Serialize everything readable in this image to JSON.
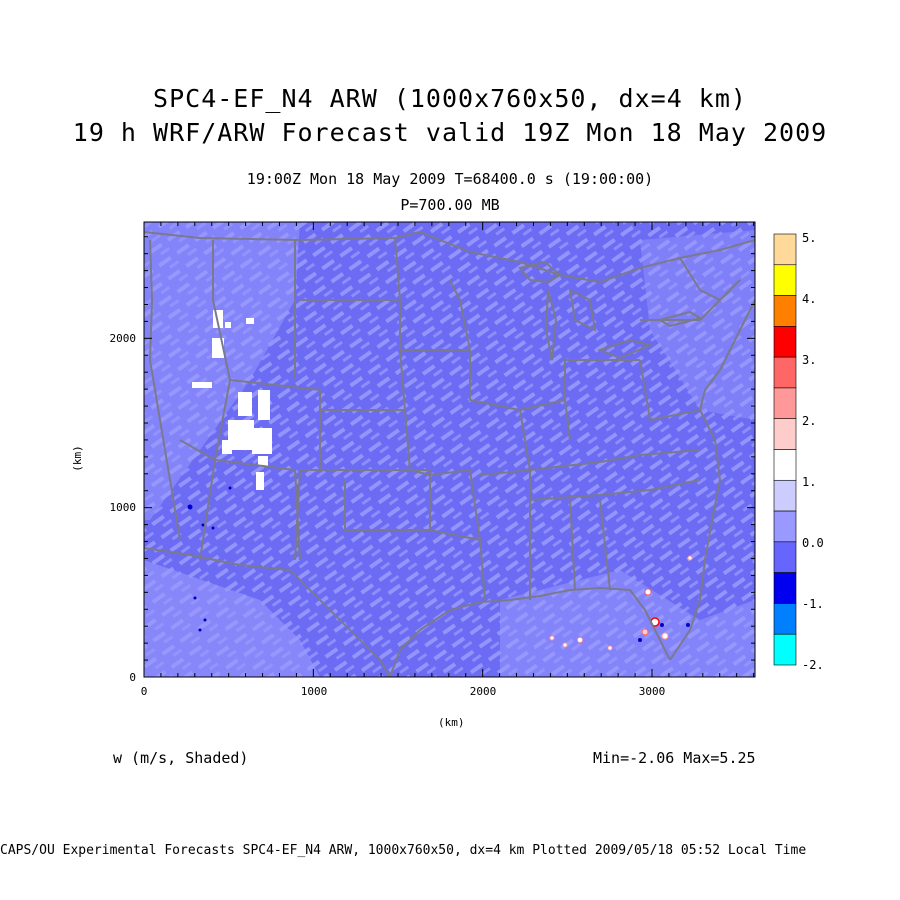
{
  "header": {
    "title_line1": "SPC4-EF_N4 ARW (1000x760x50, dx=4 km)",
    "title_line2": "19 h WRF/ARW Forecast valid 19Z Mon 18 May 2009",
    "subtitle": "19:00Z Mon 18 May 2009    T=68400.0 s (19:00:00)",
    "level": "P=700.00 MB"
  },
  "axes": {
    "x_label": "(km)",
    "y_label": "(km)",
    "x_ticks": [
      "0",
      "1000",
      "2000",
      "3000"
    ],
    "y_ticks": [
      "0",
      "1000",
      "2000"
    ]
  },
  "colorbar": {
    "labels": [
      "5.",
      "4.",
      "3.",
      "2.",
      "1.",
      "0.0",
      "-1.",
      "-2."
    ],
    "colors": [
      "#ffd999",
      "#ffff00",
      "#ff8000",
      "#ff0000",
      "#ff6666",
      "#ff9999",
      "#ffcccc",
      "#ffffff",
      "#ccccff",
      "#9999ff",
      "#6666ff",
      "#0000ee",
      "#0080ff",
      "#00ffff"
    ]
  },
  "map": {
    "background_color": "#6b6bf3",
    "region": "Continental United States"
  },
  "field": {
    "label": "w (m/s, Shaded)",
    "minmax": "Min=-2.06 Max=5.25"
  },
  "footer": {
    "text": "CAPS/OU Experimental Forecasts  SPC4-EF_N4 ARW, 1000x760x50, dx=4 km  Plotted 2009/05/18 05:52 Local Time"
  }
}
